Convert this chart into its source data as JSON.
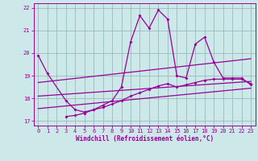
{
  "xlabel": "Windchill (Refroidissement éolien,°C)",
  "xlim": [
    -0.5,
    23.5
  ],
  "ylim": [
    16.8,
    22.2
  ],
  "yticks": [
    17,
    18,
    19,
    20,
    21,
    22
  ],
  "xticks": [
    0,
    1,
    2,
    3,
    4,
    5,
    6,
    7,
    8,
    9,
    10,
    11,
    12,
    13,
    14,
    15,
    16,
    17,
    18,
    19,
    20,
    21,
    22,
    23
  ],
  "background_color": "#cce8e8",
  "line_color": "#990099",
  "grid_color": "#99bbbb",
  "main_curve": {
    "x": [
      0,
      1,
      3,
      4,
      5,
      6,
      7,
      8,
      9,
      10,
      11,
      12,
      13,
      14,
      15,
      16,
      17,
      18,
      19,
      20,
      21,
      22,
      23
    ],
    "y": [
      19.9,
      19.1,
      17.9,
      17.5,
      17.4,
      17.5,
      17.7,
      17.9,
      18.5,
      20.5,
      21.65,
      21.1,
      21.9,
      21.5,
      19.0,
      18.9,
      20.4,
      20.7,
      19.6,
      18.9,
      18.9,
      18.9,
      18.6
    ]
  },
  "lower_curve": {
    "x": [
      3,
      4,
      5,
      6,
      7,
      8,
      9,
      10,
      11,
      12,
      13,
      14,
      15,
      16,
      17,
      18,
      19,
      20,
      21,
      22,
      23
    ],
    "y": [
      17.2,
      17.25,
      17.35,
      17.5,
      17.6,
      17.75,
      17.9,
      18.1,
      18.25,
      18.4,
      18.55,
      18.65,
      18.5,
      18.6,
      18.7,
      18.8,
      18.85,
      18.85,
      18.85,
      18.85,
      18.65
    ]
  },
  "trend1": {
    "x": [
      0,
      23
    ],
    "y": [
      18.7,
      19.75
    ]
  },
  "trend2": {
    "x": [
      0,
      23
    ],
    "y": [
      18.1,
      18.75
    ]
  },
  "trend3": {
    "x": [
      0,
      23
    ],
    "y": [
      17.55,
      18.45
    ]
  }
}
